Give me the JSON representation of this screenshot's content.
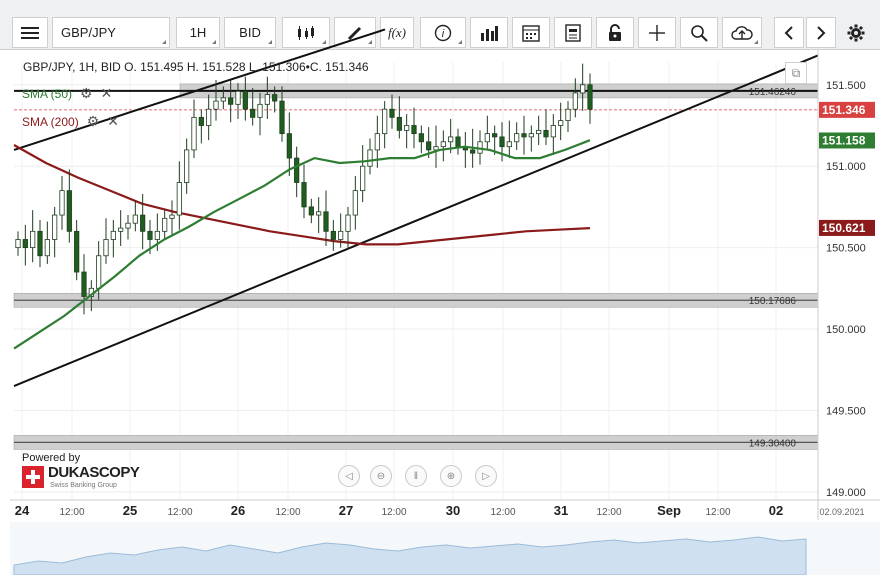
{
  "toolbar": {
    "symbol": "GBP/JPY",
    "period": "1H",
    "side": "BID",
    "fx_label": "f(x)",
    "info_label": "i"
  },
  "legend": {
    "info": "GBP/JPY, 1H, BID   O. 151.495 H. 151.528 L. 151.306•C. 151.346",
    "sma50": "SMA (50)",
    "sma200": "SMA (200)"
  },
  "logo": {
    "powered": "Powered by",
    "brand": "DUKASCOPY",
    "sub": "Swiss Banking Group"
  },
  "colors": {
    "sma50": "#2e7d32",
    "sma200": "#8b1a1a",
    "candle_up": "#ffffff",
    "candle_down": "#1f5e1f",
    "price_tag": "#d94040",
    "level_band": "#cfcfcf"
  },
  "chart_data": {
    "type": "candlestick",
    "title": "GBP/JPY, 1H, BID",
    "ylim": [
      148.95,
      151.64
    ],
    "y_ticks": [
      "151.500",
      "151.000",
      "150.500",
      "150.000",
      "149.500",
      "149.000"
    ],
    "x_ticks": [
      "24",
      "12:00",
      "25",
      "12:00",
      "26",
      "12:00",
      "27",
      "12:00",
      "30",
      "12:00",
      "31",
      "12:00",
      "Sep",
      "12:00",
      "02",
      "02.09.2021"
    ],
    "current_price": "151.346",
    "sma50_value": "151.158",
    "sma200_value": "150.621",
    "levels": [
      "151.46246",
      "150.17686",
      "149.30400"
    ],
    "ohlc": {
      "open": 151.495,
      "high": 151.528,
      "low": 151.306,
      "close": 151.346
    },
    "series": [
      {
        "name": "SMA (50)",
        "values": [
          149.88,
          149.98,
          150.08,
          150.2,
          150.32,
          150.45,
          150.55,
          150.63,
          150.72,
          150.8,
          150.88,
          150.98,
          151.05,
          151.02,
          151.03,
          151.05,
          151.05,
          151.1,
          151.12,
          151.1,
          151.05,
          151.05,
          151.1,
          151.16
        ]
      },
      {
        "name": "SMA (200)",
        "values": [
          151.13,
          151.02,
          150.93,
          150.85,
          150.77,
          150.72,
          150.68,
          150.64,
          150.6,
          150.57,
          150.54,
          150.52,
          150.52,
          150.54,
          150.56,
          150.58,
          150.6,
          150.61,
          150.62
        ]
      }
    ]
  }
}
